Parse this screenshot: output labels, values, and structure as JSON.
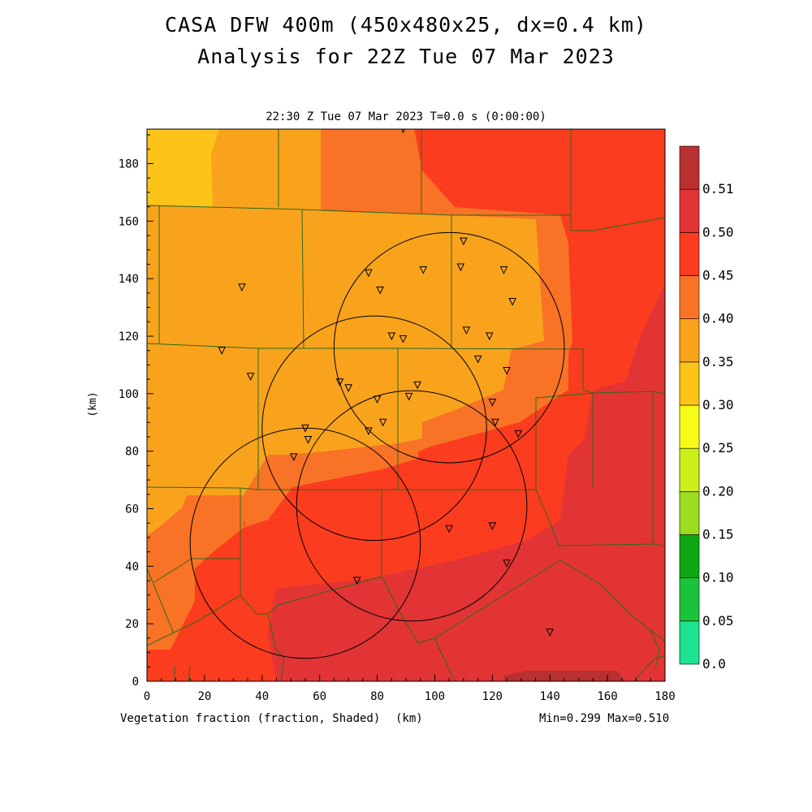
{
  "title_line1": "CASA DFW 400m (450x480x25, dx=0.4 km)",
  "title_line2": "Analysis for 22Z Tue 07 Mar 2023",
  "subtitle": "22:30 Z Tue 07 Mar 2023   T=0.0 s (0:00:00)",
  "x_axis": {
    "ticks": [
      0,
      20,
      40,
      60,
      80,
      100,
      120,
      140,
      160,
      180
    ],
    "unit": "(km)",
    "range": [
      0,
      180
    ]
  },
  "y_axis": {
    "ticks": [
      0,
      20,
      40,
      60,
      80,
      100,
      120,
      140,
      160,
      180
    ],
    "label": "(km)",
    "range": [
      0,
      192
    ]
  },
  "field_label": "Vegetation fraction (fraction, Shaded)",
  "stats": "Min=0.299 Max=0.510",
  "colorbar": {
    "labels": [
      "0.0",
      "0.05",
      "0.10",
      "0.15",
      "0.20",
      "0.25",
      "0.30",
      "0.35",
      "0.40",
      "0.45",
      "0.50",
      "0.51"
    ],
    "colors": [
      "#1de28f",
      "#1ac43a",
      "#0ea812",
      "#9ddc1e",
      "#cbef1a",
      "#f7fb18",
      "#fcc418",
      "#f9a31d",
      "#f87326",
      "#fb3c1f",
      "#e23434",
      "#b83030"
    ]
  },
  "radar_circles": [
    {
      "cx": 105,
      "cy": 116,
      "r": 40
    },
    {
      "cx": 79,
      "cy": 88,
      "r": 39
    },
    {
      "cx": 92,
      "cy": 61,
      "r": 40
    },
    {
      "cx": 55,
      "cy": 48,
      "r": 40
    }
  ],
  "stations": [
    [
      89,
      192
    ],
    [
      110,
      153
    ],
    [
      109,
      144
    ],
    [
      124,
      143
    ],
    [
      96,
      143
    ],
    [
      77,
      142
    ],
    [
      81,
      136
    ],
    [
      33,
      137
    ],
    [
      127,
      132
    ],
    [
      111,
      122
    ],
    [
      85,
      120
    ],
    [
      89,
      119
    ],
    [
      119,
      120
    ],
    [
      115,
      112
    ],
    [
      26,
      115
    ],
    [
      125,
      108
    ],
    [
      36,
      106
    ],
    [
      67,
      104
    ],
    [
      70,
      102
    ],
    [
      94,
      103
    ],
    [
      80,
      98
    ],
    [
      91,
      99
    ],
    [
      120,
      97
    ],
    [
      55,
      88
    ],
    [
      77,
      87
    ],
    [
      82,
      90
    ],
    [
      121,
      90
    ],
    [
      56,
      84
    ],
    [
      129,
      86
    ],
    [
      51,
      78
    ],
    [
      105,
      53
    ],
    [
      120,
      54
    ],
    [
      125,
      41
    ],
    [
      73,
      35
    ],
    [
      140,
      17
    ]
  ],
  "icons": {
    "station_marker": "inverted-triangle-icon"
  },
  "colors": {
    "county_lines": "#2c6a1c",
    "radar_rings": "#000000",
    "frame": "#000000"
  }
}
